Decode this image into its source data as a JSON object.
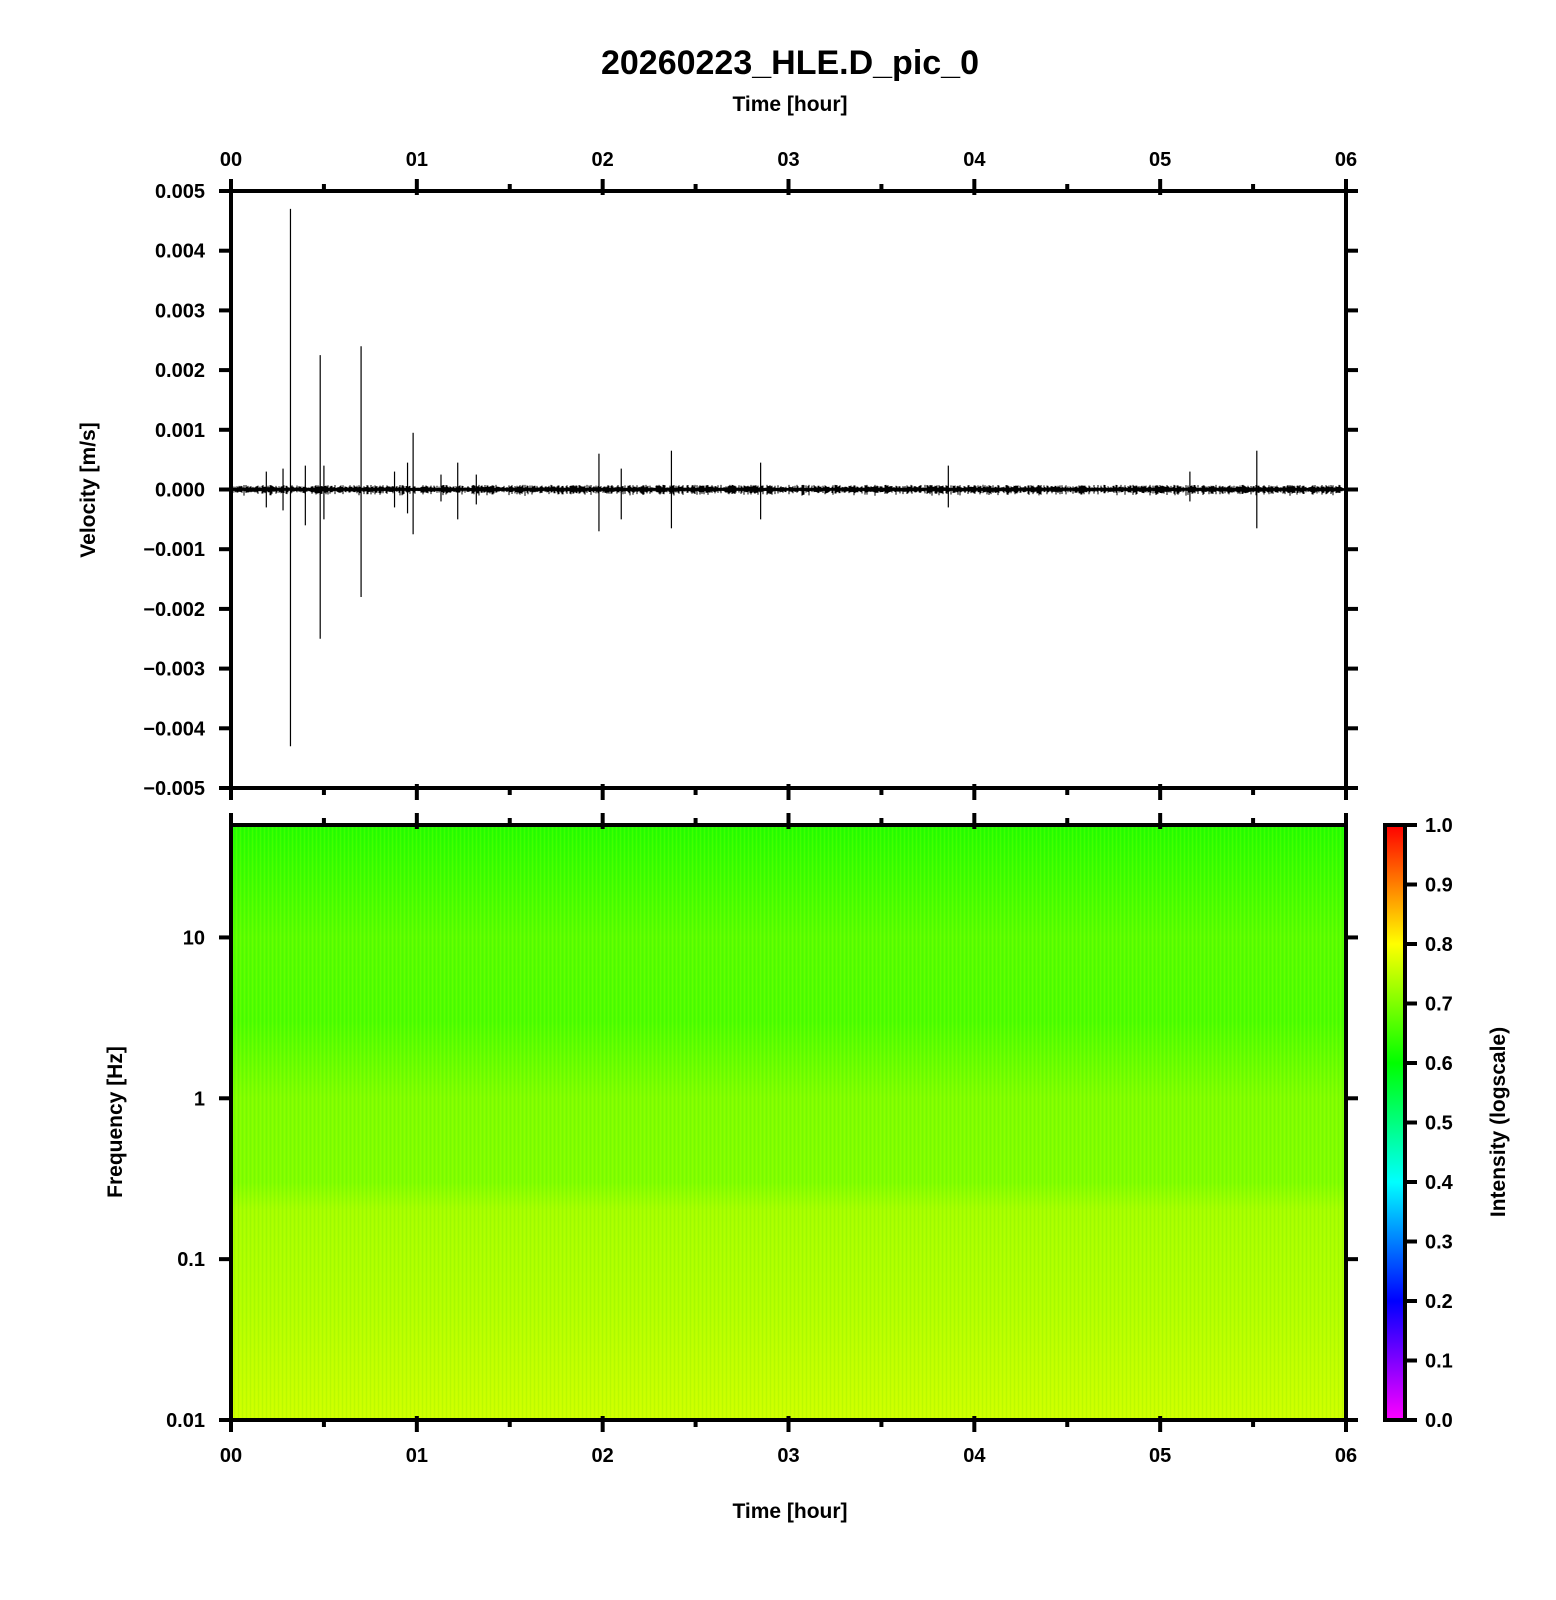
{
  "title": "20260223_HLE.D_pic_0",
  "top_axis_label": "Time [hour]",
  "bottom_axis_label": "Time [hour]",
  "chart_data": [
    {
      "type": "line",
      "name": "velocity-seismogram",
      "title": "20260223_HLE.D_pic_0",
      "xlabel": "Time [hour]",
      "ylabel": "Velocity [m/s]",
      "x_ticks": [
        "00",
        "01",
        "02",
        "03",
        "04",
        "05",
        "06"
      ],
      "xlim": [
        0,
        6
      ],
      "ylim": [
        -0.005,
        0.005
      ],
      "y_ticks": [
        "−0.005",
        "−0.004",
        "−0.003",
        "−0.002",
        "−0.001",
        "0.000",
        "0.001",
        "0.002",
        "0.003",
        "0.004",
        "0.005"
      ],
      "y_tick_values": [
        -0.005,
        -0.004,
        -0.003,
        -0.002,
        -0.001,
        0,
        0.001,
        0.002,
        0.003,
        0.004,
        0.005
      ],
      "baseline_noise": 6e-05,
      "spikes": [
        {
          "t": 0.19,
          "max": 0.0003,
          "min": -0.0003
        },
        {
          "t": 0.28,
          "max": 0.00035,
          "min": -0.00035
        },
        {
          "t": 0.32,
          "max": 0.0047,
          "min": -0.0043
        },
        {
          "t": 0.4,
          "max": 0.0004,
          "min": -0.0006
        },
        {
          "t": 0.48,
          "max": 0.00225,
          "min": -0.0025
        },
        {
          "t": 0.5,
          "max": 0.0004,
          "min": -0.0005
        },
        {
          "t": 0.7,
          "max": 0.0024,
          "min": -0.0018
        },
        {
          "t": 0.88,
          "max": 0.0003,
          "min": -0.0003
        },
        {
          "t": 0.95,
          "max": 0.00045,
          "min": -0.0004
        },
        {
          "t": 0.98,
          "max": 0.00095,
          "min": -0.00075
        },
        {
          "t": 1.13,
          "max": 0.00025,
          "min": -0.0002
        },
        {
          "t": 1.22,
          "max": 0.00045,
          "min": -0.0005
        },
        {
          "t": 1.32,
          "max": 0.00025,
          "min": -0.00025
        },
        {
          "t": 1.98,
          "max": 0.0006,
          "min": -0.0007
        },
        {
          "t": 2.1,
          "max": 0.00035,
          "min": -0.0005
        },
        {
          "t": 2.37,
          "max": 0.00065,
          "min": -0.00065
        },
        {
          "t": 2.85,
          "max": 0.00045,
          "min": -0.0005
        },
        {
          "t": 3.86,
          "max": 0.0004,
          "min": -0.0003
        },
        {
          "t": 5.16,
          "max": 0.0003,
          "min": -0.0002
        },
        {
          "t": 5.52,
          "max": 0.00065,
          "min": -0.00065
        }
      ]
    },
    {
      "type": "heatmap",
      "name": "spectrogram",
      "xlabel": "Time [hour]",
      "ylabel": "Frequency [Hz]",
      "x_ticks": [
        "00",
        "01",
        "02",
        "03",
        "04",
        "05",
        "06"
      ],
      "xlim": [
        0,
        6
      ],
      "y_scale": "log",
      "ylim": [
        0.01,
        50
      ],
      "y_ticks": [
        "0.01",
        "0.1",
        "1",
        "10"
      ],
      "y_tick_values": [
        0.01,
        0.1,
        1,
        10
      ],
      "colorbar": {
        "label": "Intensity (logscale)",
        "range": [
          0,
          1
        ],
        "ticks": [
          "0.0",
          "0.1",
          "0.2",
          "0.3",
          "0.4",
          "0.5",
          "0.6",
          "0.7",
          "0.8",
          "0.9",
          "1.0"
        ],
        "tick_values": [
          0,
          0.1,
          0.2,
          0.3,
          0.4,
          0.5,
          0.6,
          0.7,
          0.8,
          0.9,
          1.0
        ],
        "colors": [
          "#ff00ff",
          "#7f00ff",
          "#0000ff",
          "#007fff",
          "#00ffff",
          "#00ff7f",
          "#00ff00",
          "#7fff00",
          "#ffff00",
          "#ff7f00",
          "#ff0000"
        ]
      },
      "intensity_by_frequency": [
        {
          "f": 0.01,
          "intensity": 0.76
        },
        {
          "f": 0.05,
          "intensity": 0.74
        },
        {
          "f": 0.2,
          "intensity": 0.73
        },
        {
          "f": 0.3,
          "intensity": 0.7
        },
        {
          "f": 1,
          "intensity": 0.7
        },
        {
          "f": 3,
          "intensity": 0.66
        },
        {
          "f": 10,
          "intensity": 0.67
        },
        {
          "f": 50,
          "intensity": 0.63
        }
      ]
    }
  ]
}
